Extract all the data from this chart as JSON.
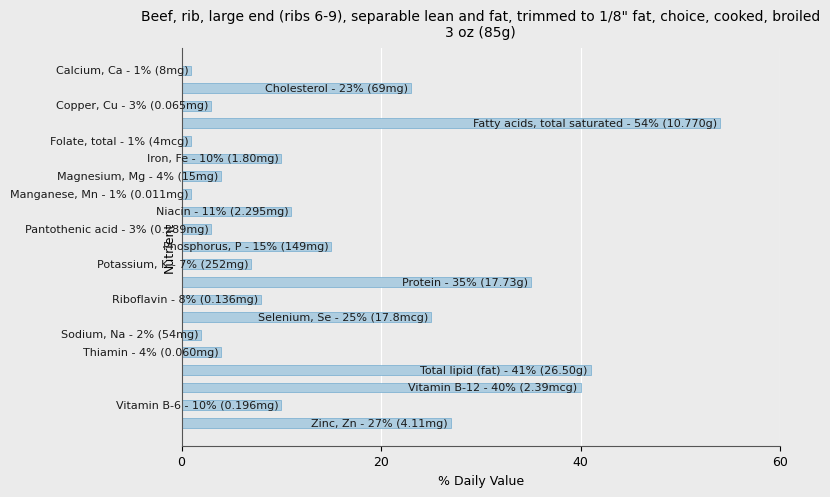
{
  "title": "Beef, rib, large end (ribs 6-9), separable lean and fat, trimmed to 1/8\" fat, choice, cooked, broiled\n3 oz (85g)",
  "xlabel": "% Daily Value",
  "ylabel": "Nutrient",
  "nutrients": [
    "Calcium, Ca - 1% (8mg)",
    "Cholesterol - 23% (69mg)",
    "Copper, Cu - 3% (0.065mg)",
    "Fatty acids, total saturated - 54% (10.770g)",
    "Folate, total - 1% (4mcg)",
    "Iron, Fe - 10% (1.80mg)",
    "Magnesium, Mg - 4% (15mg)",
    "Manganese, Mn - 1% (0.011mg)",
    "Niacin - 11% (2.295mg)",
    "Pantothenic acid - 3% (0.289mg)",
    "Phosphorus, P - 15% (149mg)",
    "Potassium, K - 7% (252mg)",
    "Protein - 35% (17.73g)",
    "Riboflavin - 8% (0.136mg)",
    "Selenium, Se - 25% (17.8mcg)",
    "Sodium, Na - 2% (54mg)",
    "Thiamin - 4% (0.060mg)",
    "Total lipid (fat) - 41% (26.50g)",
    "Vitamin B-12 - 40% (2.39mcg)",
    "Vitamin B-6 - 10% (0.196mg)",
    "Zinc, Zn - 27% (4.11mg)"
  ],
  "values": [
    1,
    23,
    3,
    54,
    1,
    10,
    4,
    1,
    11,
    3,
    15,
    7,
    35,
    8,
    25,
    2,
    4,
    41,
    40,
    10,
    27
  ],
  "bar_color": "#aecde0",
  "bar_edgecolor": "#5b9ec9",
  "background_color": "#ebebeb",
  "plot_background": "#ebebeb",
  "xlim": [
    0,
    60
  ],
  "title_fontsize": 10,
  "axis_label_fontsize": 9,
  "tick_fontsize": 9,
  "bar_label_fontsize": 8,
  "bar_height": 0.55,
  "grid_color": "#ffffff",
  "text_color": "#1a1a1a"
}
